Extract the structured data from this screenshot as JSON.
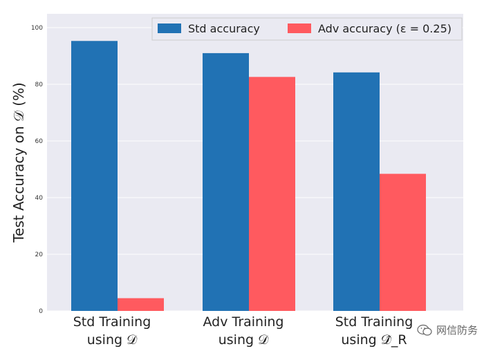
{
  "chart_data": {
    "type": "bar",
    "ylabel": "Test Accuracy on 𝒟 (%)",
    "ylim": [
      0,
      100
    ],
    "yticks": [
      0,
      20,
      40,
      60,
      80,
      100
    ],
    "categories": [
      [
        "Std Training",
        "using 𝒟"
      ],
      [
        "Adv Training",
        "using 𝒟"
      ],
      [
        "Std Training",
        "using 𝒟̂_R"
      ]
    ],
    "series": [
      {
        "name": "Std accuracy",
        "color": "#2172b4",
        "values": [
          95.3,
          91.0,
          84.2
        ]
      },
      {
        "name": "Adv accuracy (ε = 0.25)",
        "color": "#ff5a5f",
        "values": [
          4.5,
          82.6,
          48.4
        ]
      }
    ],
    "grid": true,
    "legend_position": "top-right"
  },
  "watermark": {
    "text": "网信防务",
    "icon": "wechat-icon"
  }
}
